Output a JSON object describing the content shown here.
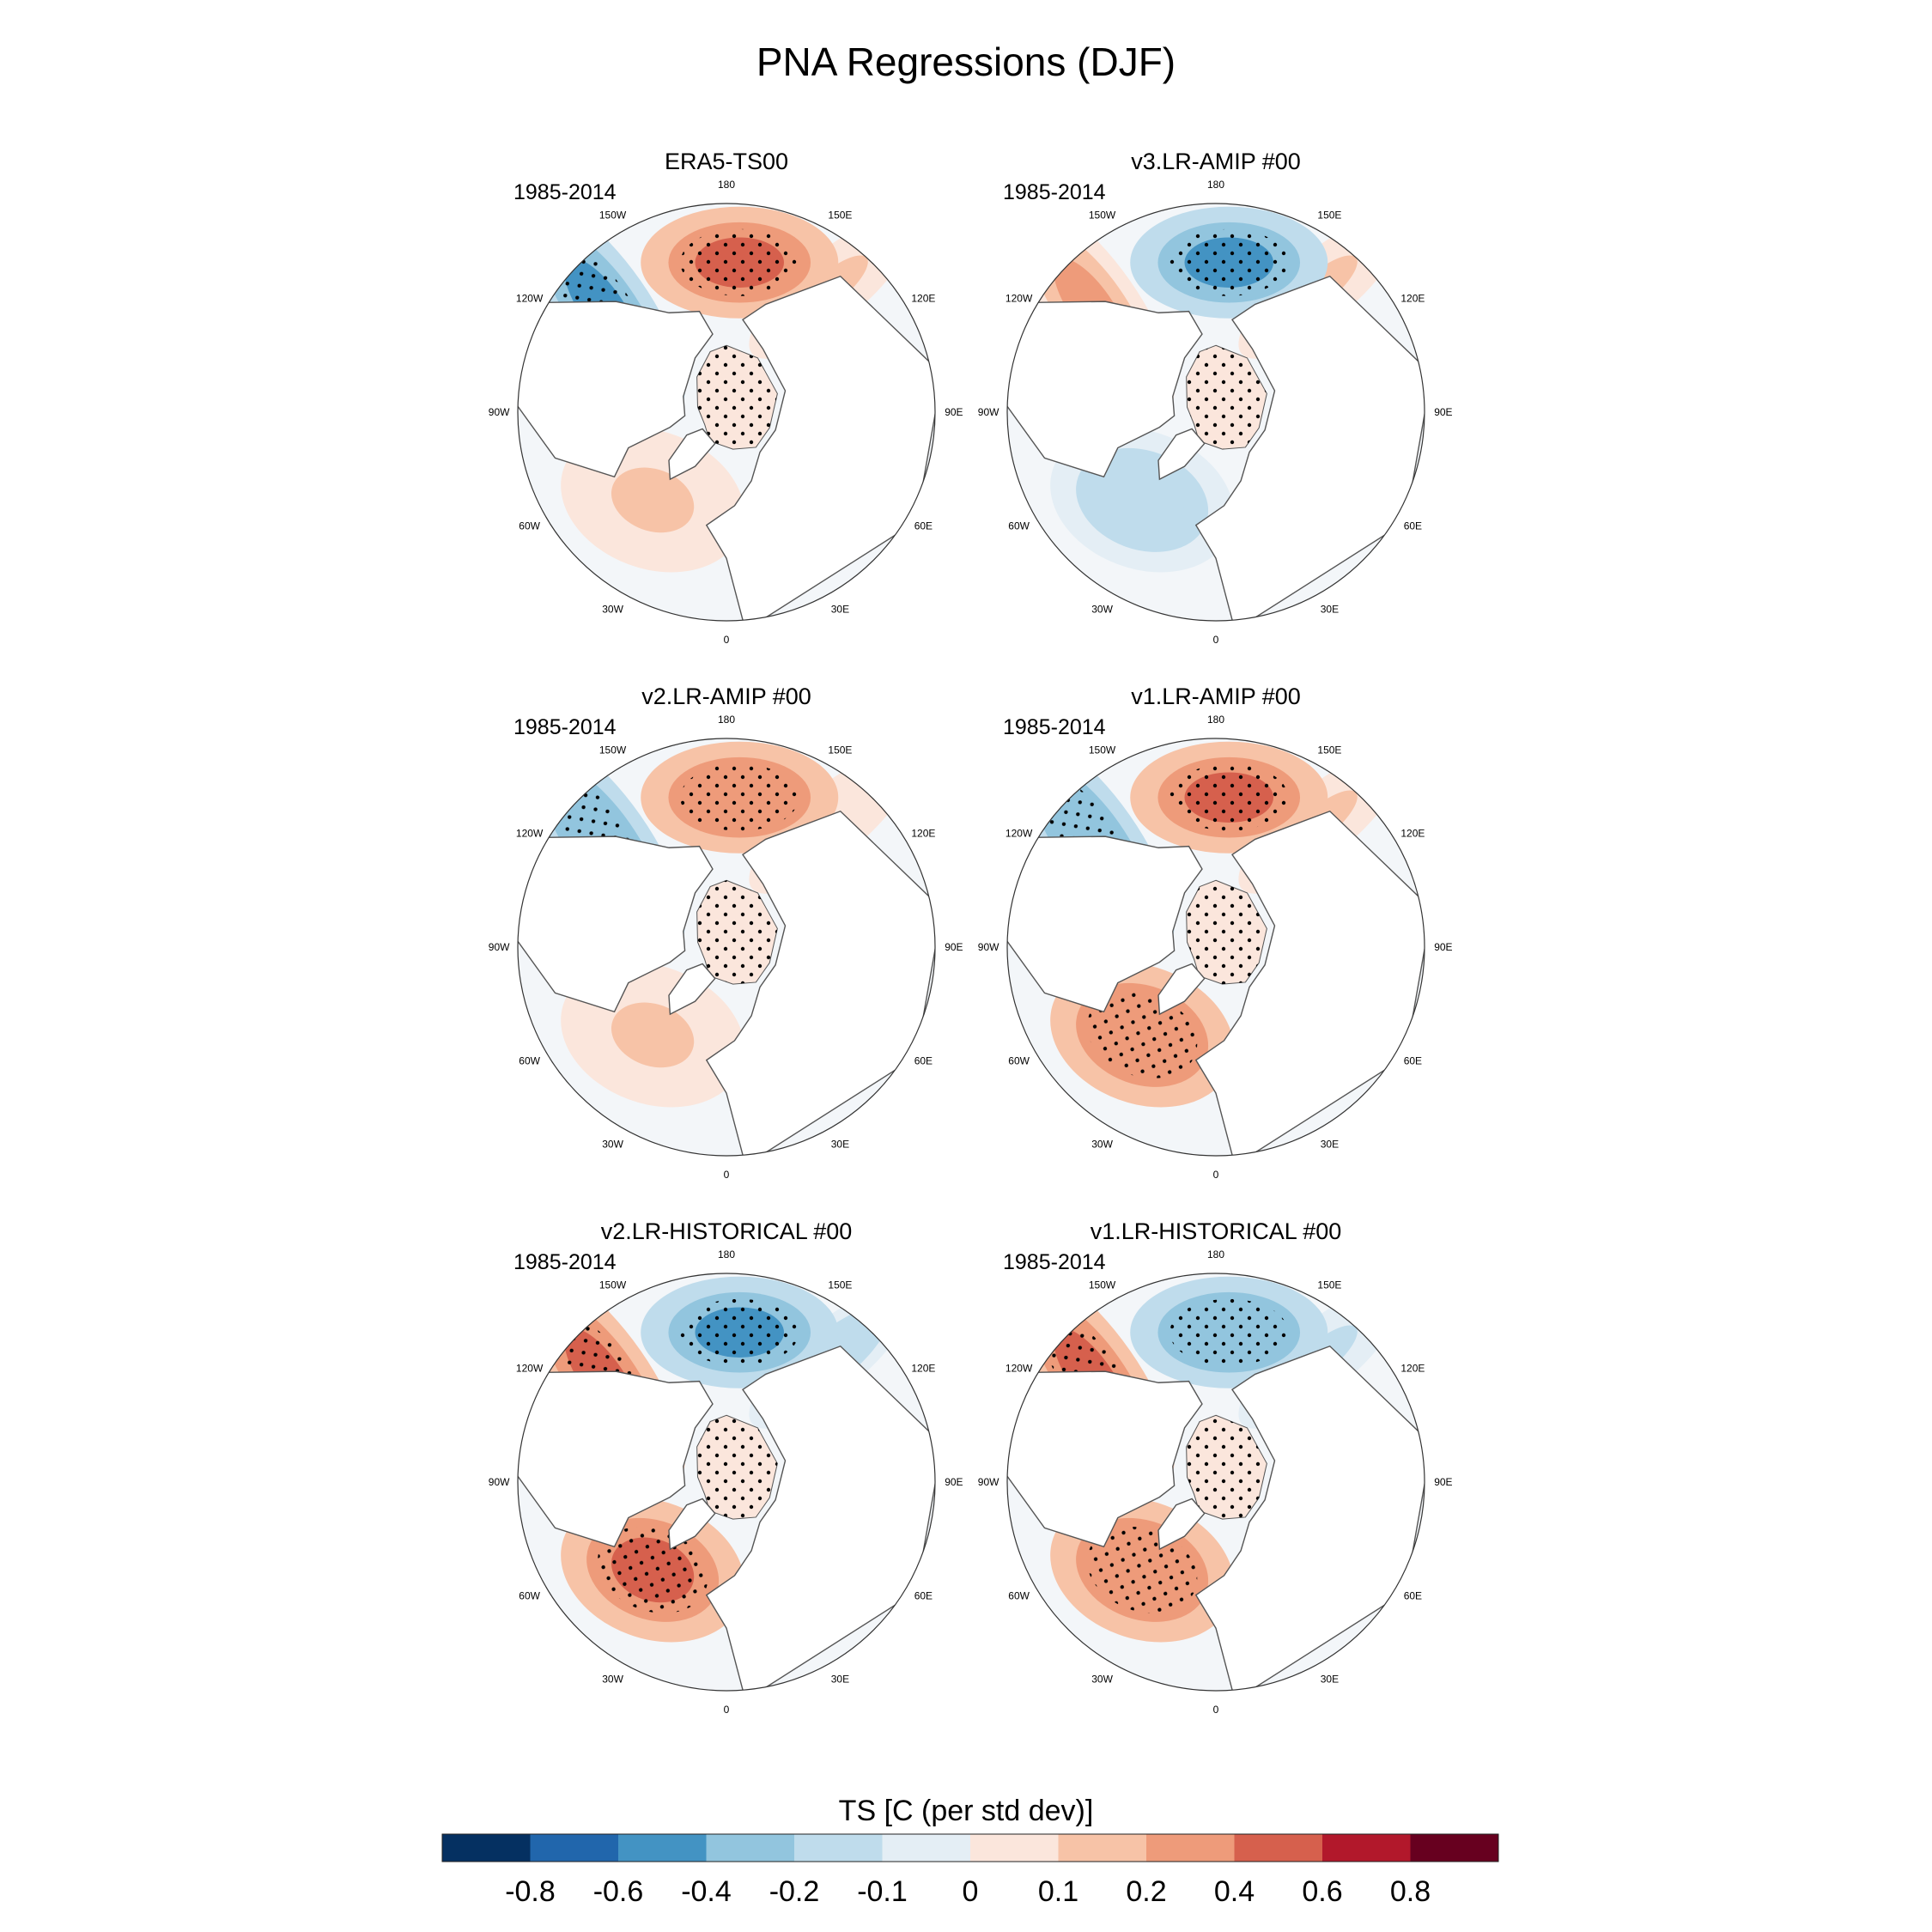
{
  "title": "PNA Regressions (DJF)",
  "projection": "north-polar-stereographic",
  "longitude_labels": [
    "180",
    "150E",
    "120E",
    "90E",
    "60E",
    "30E",
    "0",
    "30W",
    "60W",
    "90W",
    "120W",
    "150W"
  ],
  "colors": {
    "land": "#ffffff",
    "coast": "#555555",
    "stipple": "#000000",
    "levels": [
      "#053061",
      "#2166ac",
      "#4393c3",
      "#92c5de",
      "#bfdcec",
      "#e4eef5",
      "#fbe6dc",
      "#f7c3a7",
      "#ee9b7a",
      "#d6604d",
      "#b2182b",
      "#67001f"
    ]
  },
  "panels": [
    {
      "title": "ERA5-TS00",
      "period": "1985-2014",
      "pattern": {
        "north_pacific_center": 0.55,
        "north_america_band": -0.45,
        "arctic_ocean": 0.08,
        "north_atlantic": 0.1,
        "eurasia_pacific": 0.1
      }
    },
    {
      "title": "v3.LR-AMIP  #00",
      "period": "1985-2014",
      "pattern": {
        "north_pacific_center": -0.55,
        "north_america_band": 0.25,
        "arctic_ocean": 0.08,
        "north_atlantic": -0.15,
        "eurasia_pacific": 0.1
      }
    },
    {
      "title": "v2.LR-AMIP  #00",
      "period": "1985-2014",
      "pattern": {
        "north_pacific_center": 0.3,
        "north_america_band": -0.4,
        "arctic_ocean": 0.08,
        "north_atlantic": 0.12,
        "eurasia_pacific": 0.08
      }
    },
    {
      "title": "v1.LR-AMIP  #00",
      "period": "1985-2014",
      "pattern": {
        "north_pacific_center": 0.45,
        "north_america_band": -0.35,
        "arctic_ocean": 0.08,
        "north_atlantic": 0.3,
        "eurasia_pacific": 0.1
      }
    },
    {
      "title": "v2.LR-HISTORICAL  #00",
      "period": "1985-2014",
      "pattern": {
        "north_pacific_center": -0.5,
        "north_america_band": 0.5,
        "arctic_ocean": 0.08,
        "north_atlantic": 0.45,
        "eurasia_pacific": -0.15
      }
    },
    {
      "title": "v1.LR-HISTORICAL  #00",
      "period": "1985-2014",
      "pattern": {
        "north_pacific_center": -0.4,
        "north_america_band": 0.45,
        "arctic_ocean": 0.08,
        "north_atlantic": 0.35,
        "eurasia_pacific": -0.12
      }
    }
  ],
  "colorbar": {
    "title": "TS [C (per std dev)]",
    "tick_labels": [
      "-0.8",
      "-0.6",
      "-0.4",
      "-0.2",
      "-0.1",
      "0",
      "0.1",
      "0.2",
      "0.4",
      "0.6",
      "0.8"
    ]
  }
}
